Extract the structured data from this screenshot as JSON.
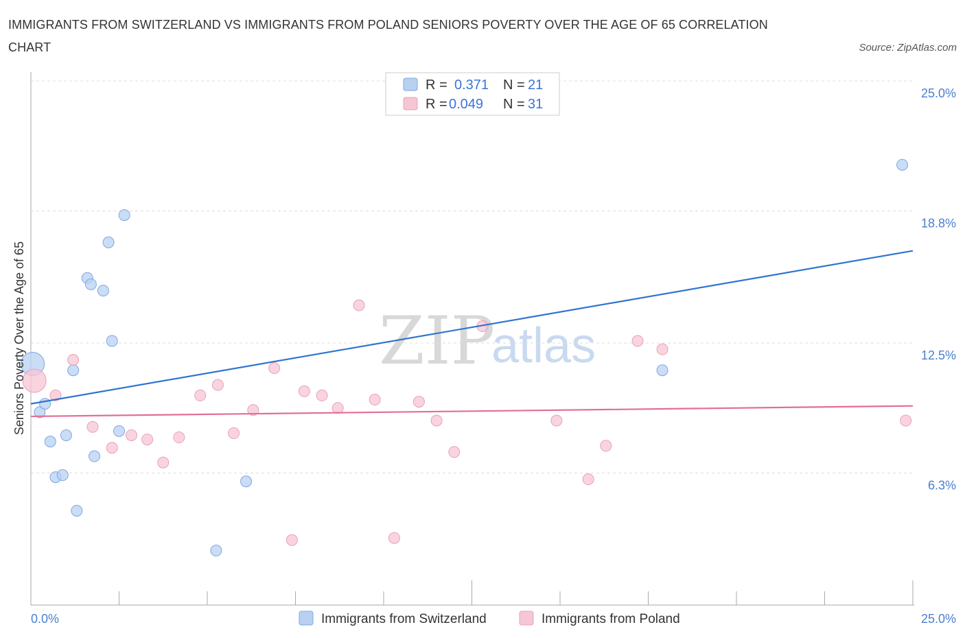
{
  "title": "IMMIGRANTS FROM SWITZERLAND VS IMMIGRANTS FROM POLAND SENIORS POVERTY OVER THE AGE OF 65 CORRELATION CHART",
  "source": "Source: ZipAtlas.com",
  "watermark": {
    "zip": "ZIP",
    "atlas": "atlas"
  },
  "colors": {
    "switzerland_fill": "#b8d1f3",
    "switzerland_stroke": "#7ea6e0",
    "switzerland_line": "#2f74d0",
    "poland_fill": "#f7c6d4",
    "poland_stroke": "#e9a0b8",
    "poland_line": "#e36d97",
    "tick_label": "#4a7fcf",
    "grid": "#dddddd"
  },
  "legend": {
    "rows": [
      {
        "r_label": "R =",
        "r_value": "0.371",
        "n_label": "N =",
        "n_value": "21"
      },
      {
        "r_label": "R =",
        "r_value": "0.049",
        "n_label": "N =",
        "n_value": "31"
      }
    ]
  },
  "chart_data": {
    "type": "scatter",
    "title": "IMMIGRANTS FROM SWITZERLAND VS IMMIGRANTS FROM POLAND SENIORS POVERTY OVER THE AGE OF 65 CORRELATION CHART",
    "xlabel": "",
    "ylabel": "Seniors Poverty Over the Age of 65",
    "xlim": [
      0,
      25
    ],
    "ylim": [
      0,
      25
    ],
    "x_tick_labels": [
      "0.0%",
      "25.0%"
    ],
    "y_ticks": [
      6.3,
      12.5,
      18.8,
      25.0
    ],
    "y_tick_labels": [
      "6.3%",
      "12.5%",
      "18.8%",
      "25.0%"
    ],
    "grid": true,
    "legend_position": "top-center",
    "series": [
      {
        "name": "Immigrants from Switzerland",
        "r": 0.371,
        "n": 21,
        "trend": {
          "x": [
            0,
            25
          ],
          "y": [
            9.6,
            16.9
          ]
        },
        "points": [
          {
            "x": 0.05,
            "y": 11.5,
            "big": true
          },
          {
            "x": 0.25,
            "y": 9.2
          },
          {
            "x": 0.4,
            "y": 9.6
          },
          {
            "x": 0.55,
            "y": 7.8
          },
          {
            "x": 0.7,
            "y": 6.1
          },
          {
            "x": 0.9,
            "y": 6.2
          },
          {
            "x": 1.0,
            "y": 8.1
          },
          {
            "x": 1.2,
            "y": 11.2
          },
          {
            "x": 1.3,
            "y": 4.5
          },
          {
            "x": 1.6,
            "y": 15.6
          },
          {
            "x": 1.7,
            "y": 15.3
          },
          {
            "x": 1.8,
            "y": 7.1
          },
          {
            "x": 2.05,
            "y": 15.0
          },
          {
            "x": 2.2,
            "y": 17.3
          },
          {
            "x": 2.3,
            "y": 12.6
          },
          {
            "x": 2.5,
            "y": 8.3
          },
          {
            "x": 2.65,
            "y": 18.6
          },
          {
            "x": 5.25,
            "y": 2.6
          },
          {
            "x": 6.1,
            "y": 5.9
          },
          {
            "x": 17.9,
            "y": 11.2
          },
          {
            "x": 24.7,
            "y": 21.0
          }
        ]
      },
      {
        "name": "Immigrants from Poland",
        "r": 0.049,
        "n": 31,
        "trend": {
          "x": [
            0,
            25
          ],
          "y": [
            9.0,
            9.5
          ]
        },
        "points": [
          {
            "x": 0.1,
            "y": 10.7,
            "big": true
          },
          {
            "x": 0.7,
            "y": 10.0
          },
          {
            "x": 1.2,
            "y": 11.7
          },
          {
            "x": 1.75,
            "y": 8.5
          },
          {
            "x": 2.3,
            "y": 7.5
          },
          {
            "x": 2.85,
            "y": 8.1
          },
          {
            "x": 3.3,
            "y": 7.9
          },
          {
            "x": 3.75,
            "y": 6.8
          },
          {
            "x": 4.2,
            "y": 8.0
          },
          {
            "x": 4.8,
            "y": 10.0
          },
          {
            "x": 5.3,
            "y": 10.5
          },
          {
            "x": 5.75,
            "y": 8.2
          },
          {
            "x": 6.3,
            "y": 9.3
          },
          {
            "x": 6.9,
            "y": 11.3
          },
          {
            "x": 7.4,
            "y": 3.1
          },
          {
            "x": 7.75,
            "y": 10.2
          },
          {
            "x": 8.25,
            "y": 10.0
          },
          {
            "x": 8.7,
            "y": 9.4
          },
          {
            "x": 9.3,
            "y": 14.3
          },
          {
            "x": 9.75,
            "y": 9.8
          },
          {
            "x": 10.3,
            "y": 3.2
          },
          {
            "x": 11.0,
            "y": 9.7
          },
          {
            "x": 11.5,
            "y": 8.8
          },
          {
            "x": 12.0,
            "y": 7.3
          },
          {
            "x": 12.8,
            "y": 13.3
          },
          {
            "x": 14.9,
            "y": 8.8
          },
          {
            "x": 15.8,
            "y": 6.0
          },
          {
            "x": 16.3,
            "y": 7.6
          },
          {
            "x": 17.2,
            "y": 12.6
          },
          {
            "x": 17.9,
            "y": 12.2
          },
          {
            "x": 24.8,
            "y": 8.8
          }
        ]
      }
    ]
  }
}
